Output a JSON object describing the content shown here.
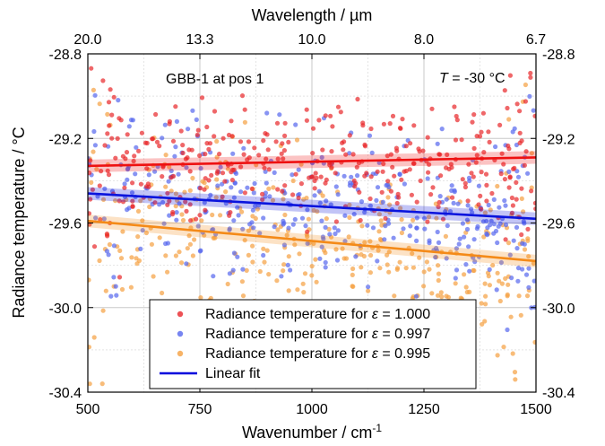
{
  "chart_data": {
    "type": "scatter",
    "annotations": {
      "label_left": "GBB-1 at pos 1",
      "label_right_italic": "T",
      "label_right_rest": " = -30 °C"
    },
    "x_axis": {
      "label_main": "Wavenumber / cm",
      "label_sup": "-1",
      "range": [
        500,
        1500
      ],
      "ticks": [
        "500",
        "750",
        "1000",
        "1250",
        "1500"
      ]
    },
    "x2_axis": {
      "label": "Wavelength / µm",
      "ticks": [
        {
          "wavenumber": 500,
          "label": "20.0"
        },
        {
          "wavenumber": 750,
          "label": "13.3"
        },
        {
          "wavenumber": 1000,
          "label": "10.0"
        },
        {
          "wavenumber": 1250,
          "label": "8.0"
        },
        {
          "wavenumber": 1500,
          "label": "6.7"
        }
      ]
    },
    "y_axis": {
      "label": "Radiance temperature / °C",
      "range": [
        -30.4,
        -28.8
      ],
      "ticks": [
        "-28.8",
        "-29.2",
        "-29.6",
        "-30.0",
        "-30.4"
      ],
      "mirrored_right": true
    },
    "grid": true,
    "legend": {
      "placement": "bottom-center",
      "entries": [
        {
          "prefix": "Radiance temperature for ",
          "symbol": "ε",
          "suffix": " = 1.000",
          "color": "#e8262a",
          "kind": "marker"
        },
        {
          "prefix": "Radiance temperature for ",
          "symbol": "ε",
          "suffix": " = 0.997",
          "color": "#5566ee",
          "kind": "marker"
        },
        {
          "prefix": "Radiance temperature for ",
          "symbol": "ε",
          "suffix": " = 0.995",
          "color": "#f5a040",
          "kind": "marker"
        },
        {
          "prefix": "Linear fit",
          "symbol": "",
          "suffix": "",
          "color": "#0000dd",
          "kind": "line"
        }
      ]
    },
    "series": [
      {
        "color": "#e8262a",
        "fit": {
          "x": [
            500,
            1500
          ],
          "y": [
            -29.33,
            -29.29
          ]
        },
        "fit_color": "#ee1111",
        "spread": 0.14,
        "count": 360
      },
      {
        "color": "#5566ee",
        "fit": {
          "x": [
            500,
            1500
          ],
          "y": [
            -29.46,
            -29.58
          ]
        },
        "fit_color": "#0a14dd",
        "spread": 0.17,
        "count": 360
      },
      {
        "color": "#f5a040",
        "fit": {
          "x": [
            500,
            1500
          ],
          "y": [
            -29.59,
            -29.78
          ]
        },
        "fit_color": "#f48a18",
        "spread": 0.2,
        "count": 360
      }
    ]
  }
}
